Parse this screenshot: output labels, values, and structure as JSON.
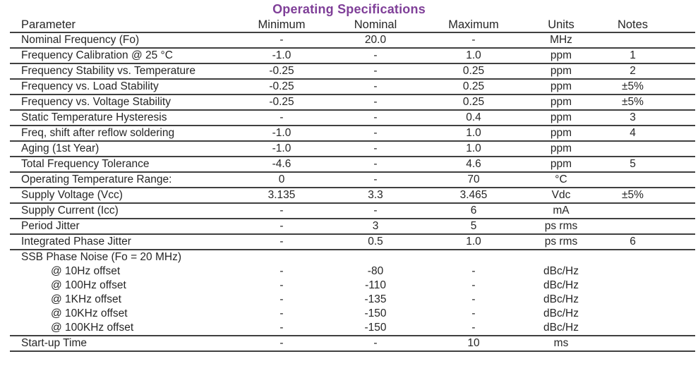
{
  "title": "Operating Specifications",
  "colors": {
    "title_accent": "#7f3f98",
    "text": "#262626",
    "rule": "#404040"
  },
  "table": {
    "columns": [
      "Parameter",
      "Minimum",
      "Nominal",
      "Maximum",
      "Units",
      "Notes"
    ],
    "rows": [
      {
        "cells": [
          "Nominal Frequency (Fo)",
          "-",
          "20.0",
          "-",
          "MHz",
          ""
        ],
        "indent": false,
        "no_border": false
      },
      {
        "cells": [
          "Frequency Calibration @ 25 °C",
          "-1.0",
          "-",
          "1.0",
          "ppm",
          "1"
        ],
        "indent": false,
        "no_border": false
      },
      {
        "cells": [
          "Frequency Stability vs. Temperature",
          "-0.25",
          "-",
          "0.25",
          "ppm",
          "2"
        ],
        "indent": false,
        "no_border": false
      },
      {
        "cells": [
          "Frequency vs. Load Stability",
          "-0.25",
          "-",
          "0.25",
          "ppm",
          "±5%"
        ],
        "indent": false,
        "no_border": false
      },
      {
        "cells": [
          "Frequency vs. Voltage Stability",
          "-0.25",
          "-",
          "0.25",
          "ppm",
          "±5%"
        ],
        "indent": false,
        "no_border": false
      },
      {
        "cells": [
          "Static Temperature Hysteresis",
          "-",
          "-",
          "0.4",
          "ppm",
          "3"
        ],
        "indent": false,
        "no_border": false
      },
      {
        "cells": [
          "Freq, shift after reflow soldering",
          "-1.0",
          "-",
          "1.0",
          "ppm",
          "4"
        ],
        "indent": false,
        "no_border": false
      },
      {
        "cells": [
          "Aging (1st Year)",
          "-1.0",
          "-",
          "1.0",
          "ppm",
          ""
        ],
        "indent": false,
        "no_border": false
      },
      {
        "cells": [
          "Total Frequency Tolerance",
          "-4.6",
          "-",
          "4.6",
          "ppm",
          "5"
        ],
        "indent": false,
        "no_border": false
      },
      {
        "cells": [
          "Operating Temperature Range:",
          "0",
          "-",
          "70",
          "°C",
          ""
        ],
        "indent": false,
        "no_border": false
      },
      {
        "cells": [
          "Supply Voltage (Vcc)",
          "3.135",
          "3.3",
          "3.465",
          "Vdc",
          "±5%"
        ],
        "indent": false,
        "no_border": false
      },
      {
        "cells": [
          "Supply Current (Icc)",
          "-",
          "-",
          "6",
          "mA",
          ""
        ],
        "indent": false,
        "no_border": false
      },
      {
        "cells": [
          "Period Jitter",
          "-",
          "3",
          "5",
          "ps rms",
          ""
        ],
        "indent": false,
        "no_border": false
      },
      {
        "cells": [
          "Integrated Phase Jitter",
          "-",
          "0.5",
          "1.0",
          "ps rms",
          "6"
        ],
        "indent": false,
        "no_border": false
      },
      {
        "cells": [
          "SSB Phase Noise (Fo = 20 MHz)",
          "",
          "",
          "",
          "",
          ""
        ],
        "indent": false,
        "no_border": true
      },
      {
        "cells": [
          "@ 10Hz offset",
          "-",
          "-80",
          "-",
          "dBc/Hz",
          ""
        ],
        "indent": true,
        "no_border": true
      },
      {
        "cells": [
          "@ 100Hz offset",
          "-",
          "-110",
          "-",
          "dBc/Hz",
          ""
        ],
        "indent": true,
        "no_border": true
      },
      {
        "cells": [
          "@ 1KHz offset",
          "-",
          "-135",
          "-",
          "dBc/Hz",
          ""
        ],
        "indent": true,
        "no_border": true
      },
      {
        "cells": [
          "@ 10KHz offset",
          "-",
          "-150",
          "-",
          "dBc/Hz",
          ""
        ],
        "indent": true,
        "no_border": true
      },
      {
        "cells": [
          "@ 100KHz offset",
          "-",
          "-150",
          "-",
          "dBc/Hz",
          ""
        ],
        "indent": true,
        "no_border": false
      },
      {
        "cells": [
          "Start-up Time",
          "-",
          "-",
          "10",
          "ms",
          ""
        ],
        "indent": false,
        "no_border": false
      }
    ]
  }
}
